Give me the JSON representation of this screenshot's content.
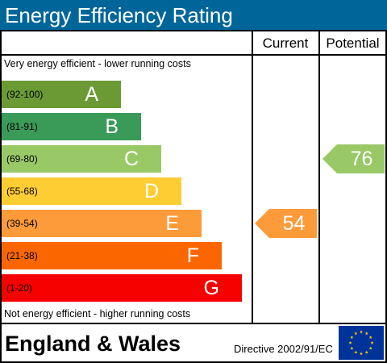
{
  "title": "Energy Efficiency Rating",
  "columns": {
    "current": "Current",
    "potential": "Potential"
  },
  "notes": {
    "top": "Very energy efficient - lower running costs",
    "bottom": "Not energy efficient - higher running costs"
  },
  "footer": {
    "region": "England & Wales",
    "directive": "Directive 2002/91/EC",
    "flag_icon": "eu-flag-icon"
  },
  "chart_data": {
    "type": "bar",
    "categories": [
      "A",
      "B",
      "C",
      "D",
      "E",
      "F",
      "G"
    ],
    "bands": [
      {
        "letter": "A",
        "range": "(92-100)",
        "color": "#6b9a35"
      },
      {
        "letter": "B",
        "range": "(81-91)",
        "color": "#3a9a58"
      },
      {
        "letter": "C",
        "range": "(69-80)",
        "color": "#99c966"
      },
      {
        "letter": "D",
        "range": "(55-68)",
        "color": "#fecc33"
      },
      {
        "letter": "E",
        "range": "(39-54)",
        "color": "#fd9a39"
      },
      {
        "letter": "F",
        "range": "(21-38)",
        "color": "#fc6600"
      },
      {
        "letter": "G",
        "range": "(1-20)",
        "color": "#f60000"
      }
    ],
    "current": {
      "value": "54",
      "band": "E",
      "color": "#fd9a39"
    },
    "potential": {
      "value": "76",
      "band": "C",
      "color": "#99c966"
    }
  }
}
